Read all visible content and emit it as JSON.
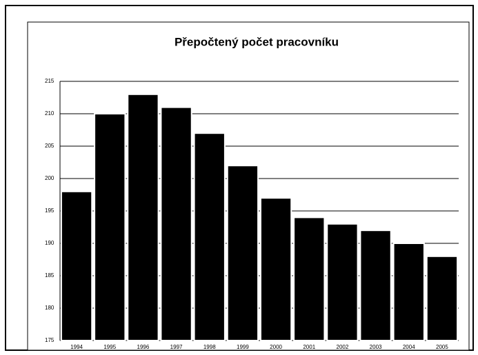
{
  "chart_data": {
    "type": "bar",
    "title": "Přepočtený počet pracovníku",
    "categories": [
      "1994",
      "1995",
      "1996",
      "1997",
      "1998",
      "1999",
      "2000",
      "2001",
      "2002",
      "2003",
      "2004",
      "2005"
    ],
    "values": [
      198,
      210,
      213,
      211,
      207,
      202,
      197,
      194,
      193,
      192,
      190,
      188
    ],
    "color": "#000000",
    "ylim": [
      175,
      215
    ],
    "yticks": [
      175,
      180,
      185,
      190,
      195,
      200,
      205,
      210,
      215
    ],
    "grid": true
  }
}
